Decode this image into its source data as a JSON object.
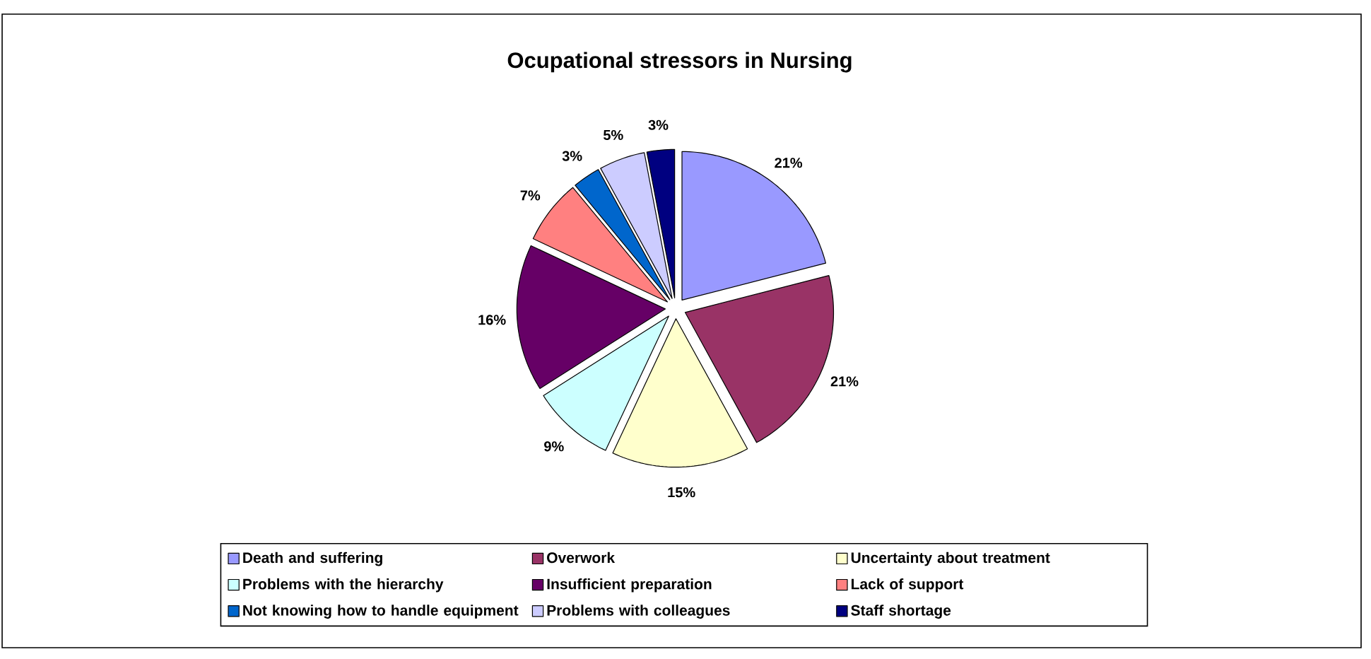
{
  "chart_data": {
    "type": "pie",
    "title": "Ocupational stressors in Nursing",
    "categories": [
      "Death and suffering",
      "Overwork",
      "Uncertainty about treatment",
      "Problems with the hierarchy",
      "Insufficient preparation",
      "Lack of support",
      "Not knowing how to handle equipment",
      "Problems with colleagues",
      "Staff shortage"
    ],
    "values": [
      21,
      21,
      15,
      9,
      16,
      7,
      3,
      5,
      3
    ],
    "value_labels": [
      "21%",
      "21%",
      "15%",
      "9%",
      "16%",
      "7%",
      "3%",
      "5%",
      "3%"
    ],
    "colors": [
      "#9999ff",
      "#993366",
      "#ffffcc",
      "#ccffff",
      "#660066",
      "#ff8080",
      "#0066cc",
      "#ccccff",
      "#000080"
    ],
    "legend": "bottom"
  }
}
